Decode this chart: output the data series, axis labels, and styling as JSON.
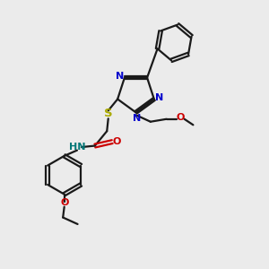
{
  "bg_color": "#ebebeb",
  "bond_color": "#1a1a1a",
  "n_color": "#0000cc",
  "o_color": "#cc0000",
  "s_color": "#aaaa00",
  "h_color": "#007777",
  "figsize": [
    3.0,
    3.0
  ],
  "dpi": 100,
  "xlim": [
    0,
    10
  ],
  "ylim": [
    0,
    10
  ],
  "lw": 1.6,
  "fs": 8.0
}
